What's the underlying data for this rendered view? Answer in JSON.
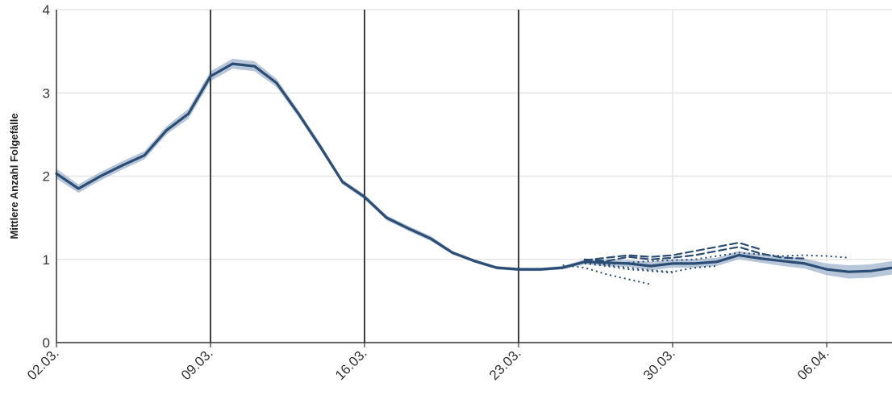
{
  "chart_data": {
    "type": "line",
    "title": "",
    "xlabel": "",
    "ylabel": "Mittlere Anzahl Folgefälle",
    "x_unit": "day of year 2020 (dates)",
    "xlim": [
      "02.03.",
      "10.04."
    ],
    "ylim": [
      0,
      4
    ],
    "yticks": [
      0,
      1,
      2,
      3,
      4
    ],
    "xticks": [
      "02.03.",
      "09.03.",
      "16.03.",
      "23.03.",
      "30.03.",
      "06.04."
    ],
    "grid": true,
    "vertical_markers": [
      "09.03.",
      "16.03.",
      "23.03."
    ],
    "colors": {
      "line": "#2b4d73",
      "band": "#9fb3cc",
      "grid": "#e6e6e6",
      "marker": "#111111"
    },
    "series": [
      {
        "style": "solid",
        "with_band": true,
        "x": [
          "02.03.",
          "03.03.",
          "04.03.",
          "05.03.",
          "06.03.",
          "07.03.",
          "08.03.",
          "09.03.",
          "10.03.",
          "11.03.",
          "12.03.",
          "13.03.",
          "14.03.",
          "15.03.",
          "16.03.",
          "17.03.",
          "18.03.",
          "19.03.",
          "20.03.",
          "21.03.",
          "22.03.",
          "23.03.",
          "24.03.",
          "25.03.",
          "26.03.",
          "27.03.",
          "28.03.",
          "29.03.",
          "30.03.",
          "31.03.",
          "01.04.",
          "02.04.",
          "03.04.",
          "04.04.",
          "05.04.",
          "06.04.",
          "07.04.",
          "08.04.",
          "09.04.",
          "10.04."
        ],
        "values": [
          2.03,
          1.85,
          2.0,
          2.13,
          2.25,
          2.55,
          2.75,
          3.2,
          3.35,
          3.32,
          3.12,
          2.75,
          2.35,
          1.93,
          1.75,
          1.5,
          1.37,
          1.25,
          1.08,
          0.98,
          0.9,
          0.88,
          0.88,
          0.9,
          0.97,
          0.96,
          0.95,
          0.92,
          0.95,
          0.95,
          0.97,
          1.05,
          1.01,
          0.98,
          0.95,
          0.88,
          0.85,
          0.86,
          0.9,
          0.91
        ],
        "band_halfwidth": [
          0.06,
          0.05,
          0.05,
          0.05,
          0.05,
          0.05,
          0.06,
          0.06,
          0.06,
          0.06,
          0.05,
          0.04,
          0.04,
          0.03,
          0.03,
          0.03,
          0.03,
          0.03,
          0.02,
          0.02,
          0.02,
          0.02,
          0.02,
          0.02,
          0.03,
          0.04,
          0.04,
          0.05,
          0.05,
          0.05,
          0.05,
          0.05,
          0.05,
          0.06,
          0.06,
          0.07,
          0.08,
          0.08,
          0.08,
          0.08
        ]
      },
      {
        "style": "dashed",
        "x": [
          "26.03.",
          "27.03.",
          "28.03.",
          "29.03.",
          "30.03.",
          "31.03.",
          "01.04.",
          "02.04.",
          "03.04.",
          "04.04.",
          "05.04."
        ],
        "values": [
          1.0,
          0.98,
          1.03,
          1.0,
          1.02,
          1.05,
          1.1,
          1.15,
          1.07,
          1.02,
          1.01
        ]
      },
      {
        "style": "dashed",
        "x": [
          "26.03.",
          "27.03.",
          "28.03.",
          "29.03.",
          "30.03.",
          "31.03.",
          "01.04.",
          "02.04.",
          "03.04."
        ],
        "values": [
          0.99,
          1.02,
          1.05,
          1.03,
          1.05,
          1.1,
          1.15,
          1.2,
          1.12
        ]
      },
      {
        "style": "dotted",
        "x": [
          "26.03.",
          "27.03.",
          "28.03.",
          "29.03.",
          "30.03.",
          "31.03.",
          "01.04.",
          "02.04.",
          "03.04.",
          "04.04.",
          "05.04.",
          "06.04.",
          "07.04."
        ],
        "values": [
          0.97,
          0.94,
          0.96,
          0.98,
          0.99,
          1.0,
          1.04,
          1.08,
          1.06,
          1.04,
          1.05,
          1.04,
          1.02
        ]
      },
      {
        "style": "dotted",
        "x": [
          "26.03.",
          "27.03.",
          "28.03.",
          "29.03.",
          "30.03."
        ],
        "values": [
          0.95,
          0.92,
          0.88,
          0.86,
          0.84
        ]
      },
      {
        "style": "dotted",
        "x": [
          "25.03.",
          "26.03.",
          "27.03.",
          "28.03.",
          "29.03."
        ],
        "values": [
          0.93,
          0.9,
          0.82,
          0.76,
          0.7
        ]
      },
      {
        "style": "dotted",
        "x": [
          "26.03.",
          "27.03.",
          "28.03.",
          "29.03.",
          "30.03.",
          "31.03.",
          "01.04."
        ],
        "values": [
          1.0,
          0.93,
          0.9,
          0.87,
          0.85,
          0.9,
          0.92
        ]
      }
    ]
  }
}
